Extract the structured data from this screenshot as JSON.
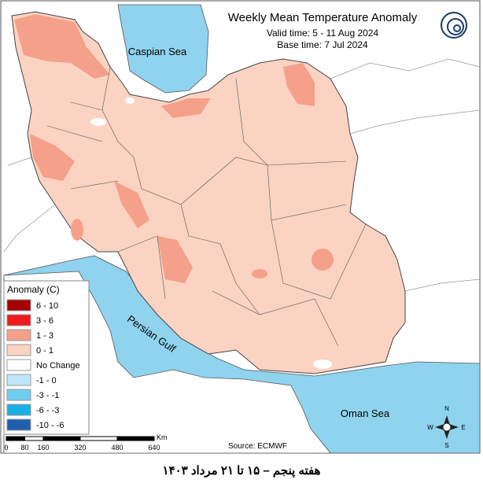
{
  "header": {
    "title": "Weekly Mean Temperature Anomaly",
    "valid_time": "Valid time: 5 - 11 Aug 2024",
    "base_time": "Base time: 7 Jul 2024"
  },
  "legend": {
    "title": "Anomaly (C)",
    "items": [
      {
        "label": "6 - 10",
        "color": "#a50000"
      },
      {
        "label": "3 - 6",
        "color": "#ee1c1c"
      },
      {
        "label": "1 - 3",
        "color": "#f4a08a"
      },
      {
        "label": "0 - 1",
        "color": "#fbd3c3"
      },
      {
        "label": "No Change",
        "color": "#ffffff"
      },
      {
        "label": "-1 - 0",
        "color": "#bfe6f8"
      },
      {
        "label": "-3 - -1",
        "color": "#6fcdf0"
      },
      {
        "label": "-6 - -3",
        "color": "#1aaee6"
      },
      {
        "label": "-10 - -6",
        "color": "#1f5fb0"
      }
    ]
  },
  "labels": {
    "caspian": "Caspian Sea",
    "persian_gulf": "Persian Gulf",
    "oman_sea": "Oman Sea"
  },
  "scale": {
    "ticks": [
      0,
      80,
      160,
      320,
      480,
      640
    ],
    "unit": "Km"
  },
  "source": "Source: ECMWF",
  "compass": {
    "n": "N",
    "s": "S",
    "e": "E",
    "w": "W"
  },
  "footer": "هفته پنجم – ۱۵ تا ۲۱ مرداد ۱۴۰۳"
}
